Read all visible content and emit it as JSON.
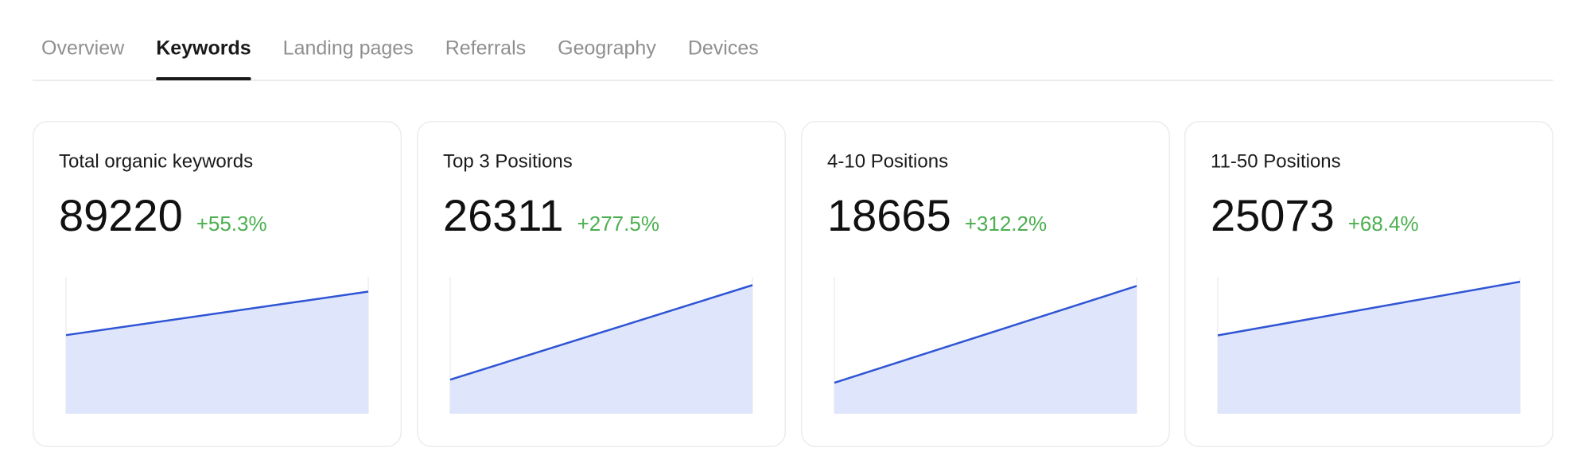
{
  "tabs": [
    "Overview",
    "Keywords",
    "Landing pages",
    "Referrals",
    "Geography",
    "Devices"
  ],
  "active_tab": 1,
  "cards": [
    {
      "title": "Total organic keywords",
      "value": 89220,
      "change": "+55.3%",
      "sparkline": {
        "type": "area",
        "values": [
          57450,
          89220
        ],
        "ylim": [
          0,
          100000
        ],
        "color": "#2f55d4"
      }
    },
    {
      "title": "Top 3 Positions",
      "value": 26311,
      "change": "+277.5%",
      "sparkline": {
        "type": "area",
        "values": [
          6970,
          26311
        ],
        "ylim": [
          0,
          28000
        ],
        "color": "#2f55d4"
      }
    },
    {
      "title": "4-10 Positions",
      "value": 18665,
      "change": "+312.2%",
      "sparkline": {
        "type": "area",
        "values": [
          4528,
          18665
        ],
        "ylim": [
          0,
          20000
        ],
        "color": "#2f55d4"
      }
    },
    {
      "title": "11-50 Positions",
      "value": 25073,
      "change": "+68.4%",
      "sparkline": {
        "type": "area",
        "values": [
          14889,
          25073
        ],
        "ylim": [
          0,
          26000
        ],
        "color": "#2f55d4"
      }
    }
  ]
}
